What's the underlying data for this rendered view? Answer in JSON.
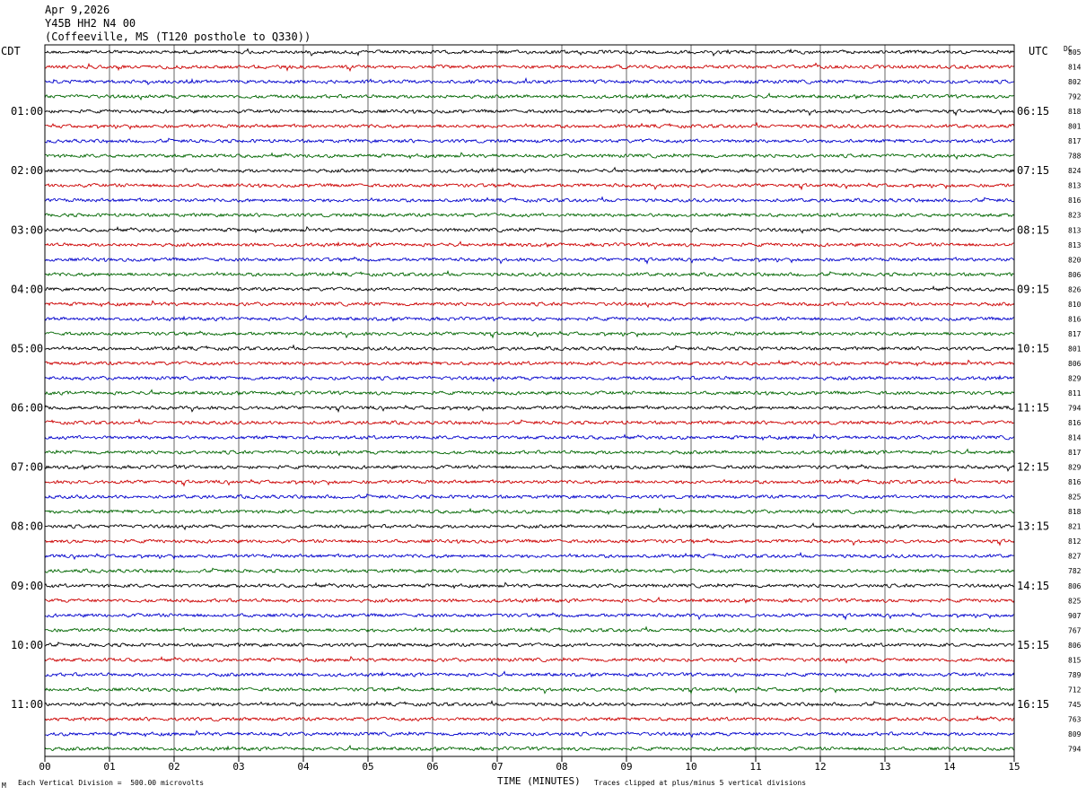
{
  "header": {
    "date": "Apr 9,2026",
    "station": "Y45B HH2 N4 00",
    "location": "(Coffeeville, MS (T120 posthole to Q330))"
  },
  "labels": {
    "left_tz": "CDT",
    "right_tz": "UTC",
    "dc_label": "DC"
  },
  "footer": {
    "scale_note": "Each Vertical Division =  500.00 microvolts",
    "mark": "M",
    "xaxis_title": "TIME (MINUTES)",
    "clip_note": "Traces clipped at plus/minus 5 vertical divisions"
  },
  "colors": {
    "trace_cycle": [
      "#000000",
      "#cc0000",
      "#0000cc",
      "#006600"
    ],
    "grid": "#000000",
    "background": "#ffffff"
  },
  "chart_data": {
    "type": "line",
    "subtype": "helicorder seismogram",
    "x_range_minutes": [
      0,
      15
    ],
    "x_ticks": [
      "00",
      "01",
      "02",
      "03",
      "04",
      "05",
      "06",
      "07",
      "08",
      "09",
      "10",
      "11",
      "12",
      "13",
      "14",
      "15"
    ],
    "rows_per_hour": 4,
    "row_count": 48,
    "left_time_labels": [
      "01:00",
      "02:00",
      "03:00",
      "04:00",
      "05:00",
      "06:00",
      "07:00",
      "08:00",
      "09:00",
      "10:00",
      "11:00"
    ],
    "left_label_rows": [
      4,
      8,
      12,
      16,
      20,
      24,
      28,
      32,
      36,
      40,
      44
    ],
    "right_time_labels": [
      "06:15",
      "07:15",
      "08:15",
      "09:15",
      "10:15",
      "11:15",
      "12:15",
      "13:15",
      "14:15",
      "15:15",
      "16:15"
    ],
    "right_label_rows": [
      4,
      8,
      12,
      16,
      20,
      24,
      28,
      32,
      36,
      40,
      44
    ],
    "dc_offsets": [
      "805",
      "814",
      "802",
      "792",
      "818",
      "801",
      "817",
      "788",
      "824",
      "813",
      "816",
      "823",
      "813",
      "813",
      "820",
      "806",
      "826",
      "810",
      "816",
      "817",
      "801",
      "806",
      "829",
      "811",
      "794",
      "816",
      "814",
      "817",
      "829",
      "816",
      "825",
      "818",
      "821",
      "812",
      "827",
      "782",
      "806",
      "825",
      "907",
      "767",
      "806",
      "815",
      "789",
      "712",
      "745",
      "763",
      "809",
      "794"
    ]
  }
}
